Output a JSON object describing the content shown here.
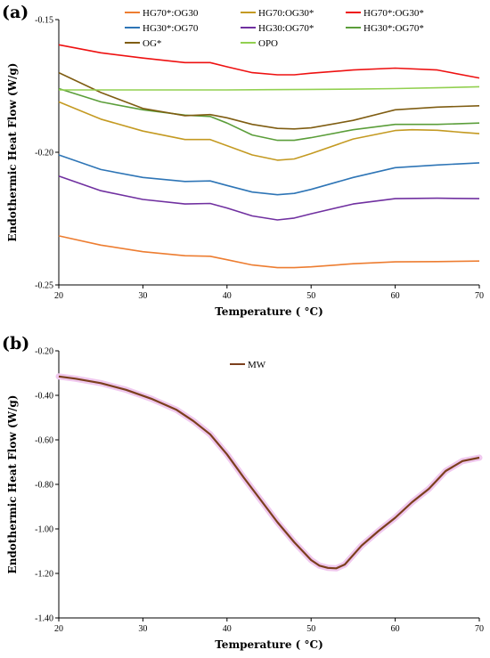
{
  "chart_data": [
    {
      "type": "line",
      "panel_label": "(a)",
      "xlabel": "Temperature ( °C)",
      "ylabel": "Endothermic Heat Flow (W/g)",
      "xlim": [
        20,
        70
      ],
      "ylim": [
        -0.25,
        -0.15
      ],
      "xticks": [
        "20",
        "30",
        "40",
        "50",
        "60",
        "70"
      ],
      "yticks": [
        "-0.15",
        "-0.20",
        "-0.25"
      ],
      "grid": false,
      "legend_position": "top",
      "series": [
        {
          "name": "HG70*:OG30",
          "color": "#ed7d31",
          "x": [
            20,
            25,
            30,
            35,
            38,
            40,
            43,
            46,
            48,
            50,
            55,
            60,
            65,
            70
          ],
          "y": [
            -0.2315,
            -0.235,
            -0.2375,
            -0.239,
            -0.2392,
            -0.2405,
            -0.2425,
            -0.2435,
            -0.2435,
            -0.2432,
            -0.242,
            -0.2413,
            -0.2412,
            -0.241
          ]
        },
        {
          "name": "HG70:OG30*",
          "color": "#c49a22",
          "x": [
            20,
            25,
            30,
            35,
            38,
            40,
            43,
            46,
            48,
            50,
            55,
            60,
            62,
            65,
            68,
            70
          ],
          "y": [
            -0.181,
            -0.1875,
            -0.192,
            -0.1952,
            -0.1952,
            -0.1975,
            -0.201,
            -0.203,
            -0.2025,
            -0.2005,
            -0.195,
            -0.1918,
            -0.1915,
            -0.1917,
            -0.1925,
            -0.193
          ]
        },
        {
          "name": "HG70*:OG30*",
          "color": "#ee1111",
          "x": [
            20,
            25,
            30,
            35,
            38,
            40,
            43,
            46,
            48,
            50,
            55,
            60,
            65,
            70
          ],
          "y": [
            -0.1595,
            -0.1625,
            -0.1645,
            -0.1662,
            -0.1662,
            -0.1678,
            -0.17,
            -0.1708,
            -0.1708,
            -0.1702,
            -0.169,
            -0.1683,
            -0.169,
            -0.172
          ]
        },
        {
          "name": "HG30*:OG70",
          "color": "#2e75b6",
          "x": [
            20,
            25,
            30,
            35,
            38,
            40,
            43,
            46,
            48,
            50,
            55,
            60,
            65,
            70
          ],
          "y": [
            -0.201,
            -0.2065,
            -0.2095,
            -0.211,
            -0.2108,
            -0.2125,
            -0.215,
            -0.216,
            -0.2155,
            -0.214,
            -0.2095,
            -0.2058,
            -0.2048,
            -0.204
          ]
        },
        {
          "name": "HG30:OG70*",
          "color": "#7030a0",
          "x": [
            20,
            25,
            30,
            35,
            38,
            40,
            43,
            46,
            48,
            50,
            55,
            60,
            65,
            70
          ],
          "y": [
            -0.209,
            -0.2145,
            -0.2178,
            -0.2195,
            -0.2193,
            -0.221,
            -0.224,
            -0.2255,
            -0.2248,
            -0.2232,
            -0.2195,
            -0.2175,
            -0.2173,
            -0.2175
          ]
        },
        {
          "name": "HG30*:OG70*",
          "color": "#5b9e3a",
          "x": [
            20,
            25,
            30,
            35,
            38,
            40,
            43,
            46,
            48,
            50,
            55,
            60,
            65,
            70
          ],
          "y": [
            -0.176,
            -0.181,
            -0.184,
            -0.186,
            -0.1865,
            -0.189,
            -0.1935,
            -0.1955,
            -0.1955,
            -0.1945,
            -0.1915,
            -0.1895,
            -0.1895,
            -0.189
          ]
        },
        {
          "name": "OG*",
          "color": "#7f5d12",
          "x": [
            20,
            25,
            30,
            35,
            38,
            40,
            43,
            46,
            48,
            50,
            55,
            60,
            65,
            70
          ],
          "y": [
            -0.17,
            -0.1775,
            -0.1835,
            -0.1862,
            -0.1858,
            -0.187,
            -0.1895,
            -0.191,
            -0.1912,
            -0.1908,
            -0.188,
            -0.184,
            -0.183,
            -0.1825
          ]
        },
        {
          "name": "OPO",
          "color": "#92d050",
          "x": [
            20,
            25,
            30,
            35,
            40,
            45,
            50,
            55,
            60,
            65,
            70
          ],
          "y": [
            -0.1765,
            -0.1765,
            -0.1765,
            -0.1765,
            -0.1765,
            -0.1764,
            -0.1763,
            -0.1762,
            -0.176,
            -0.1757,
            -0.1753
          ]
        }
      ]
    },
    {
      "type": "line",
      "panel_label": "(b)",
      "xlabel": "Temperature ( °C)",
      "ylabel": "Endothermic Heat Flow (W/g)",
      "xlim": [
        20,
        70
      ],
      "ylim": [
        -1.4,
        -0.2
      ],
      "xticks": [
        "20",
        "30",
        "40",
        "50",
        "60",
        "70"
      ],
      "yticks": [
        "-0.20",
        "-0.40",
        "-0.60",
        "-0.80",
        "-1.00",
        "-1.20",
        "-1.40"
      ],
      "grid": false,
      "legend_position": "top-center",
      "series": [
        {
          "name": "MW",
          "color": "#7b3f1d",
          "halo_color": "#f0c8ee",
          "x": [
            20,
            22,
            25,
            28,
            31,
            34,
            36,
            38,
            40,
            42,
            44,
            46,
            48,
            50,
            51,
            52,
            53,
            54,
            56,
            58,
            60,
            62,
            64,
            66,
            68,
            70
          ],
          "y": [
            -0.315,
            -0.325,
            -0.345,
            -0.375,
            -0.415,
            -0.465,
            -0.515,
            -0.575,
            -0.665,
            -0.77,
            -0.87,
            -0.97,
            -1.06,
            -1.14,
            -1.165,
            -1.175,
            -1.177,
            -1.16,
            -1.075,
            -1.01,
            -0.95,
            -0.88,
            -0.82,
            -0.74,
            -0.695,
            -0.68
          ]
        }
      ]
    }
  ]
}
